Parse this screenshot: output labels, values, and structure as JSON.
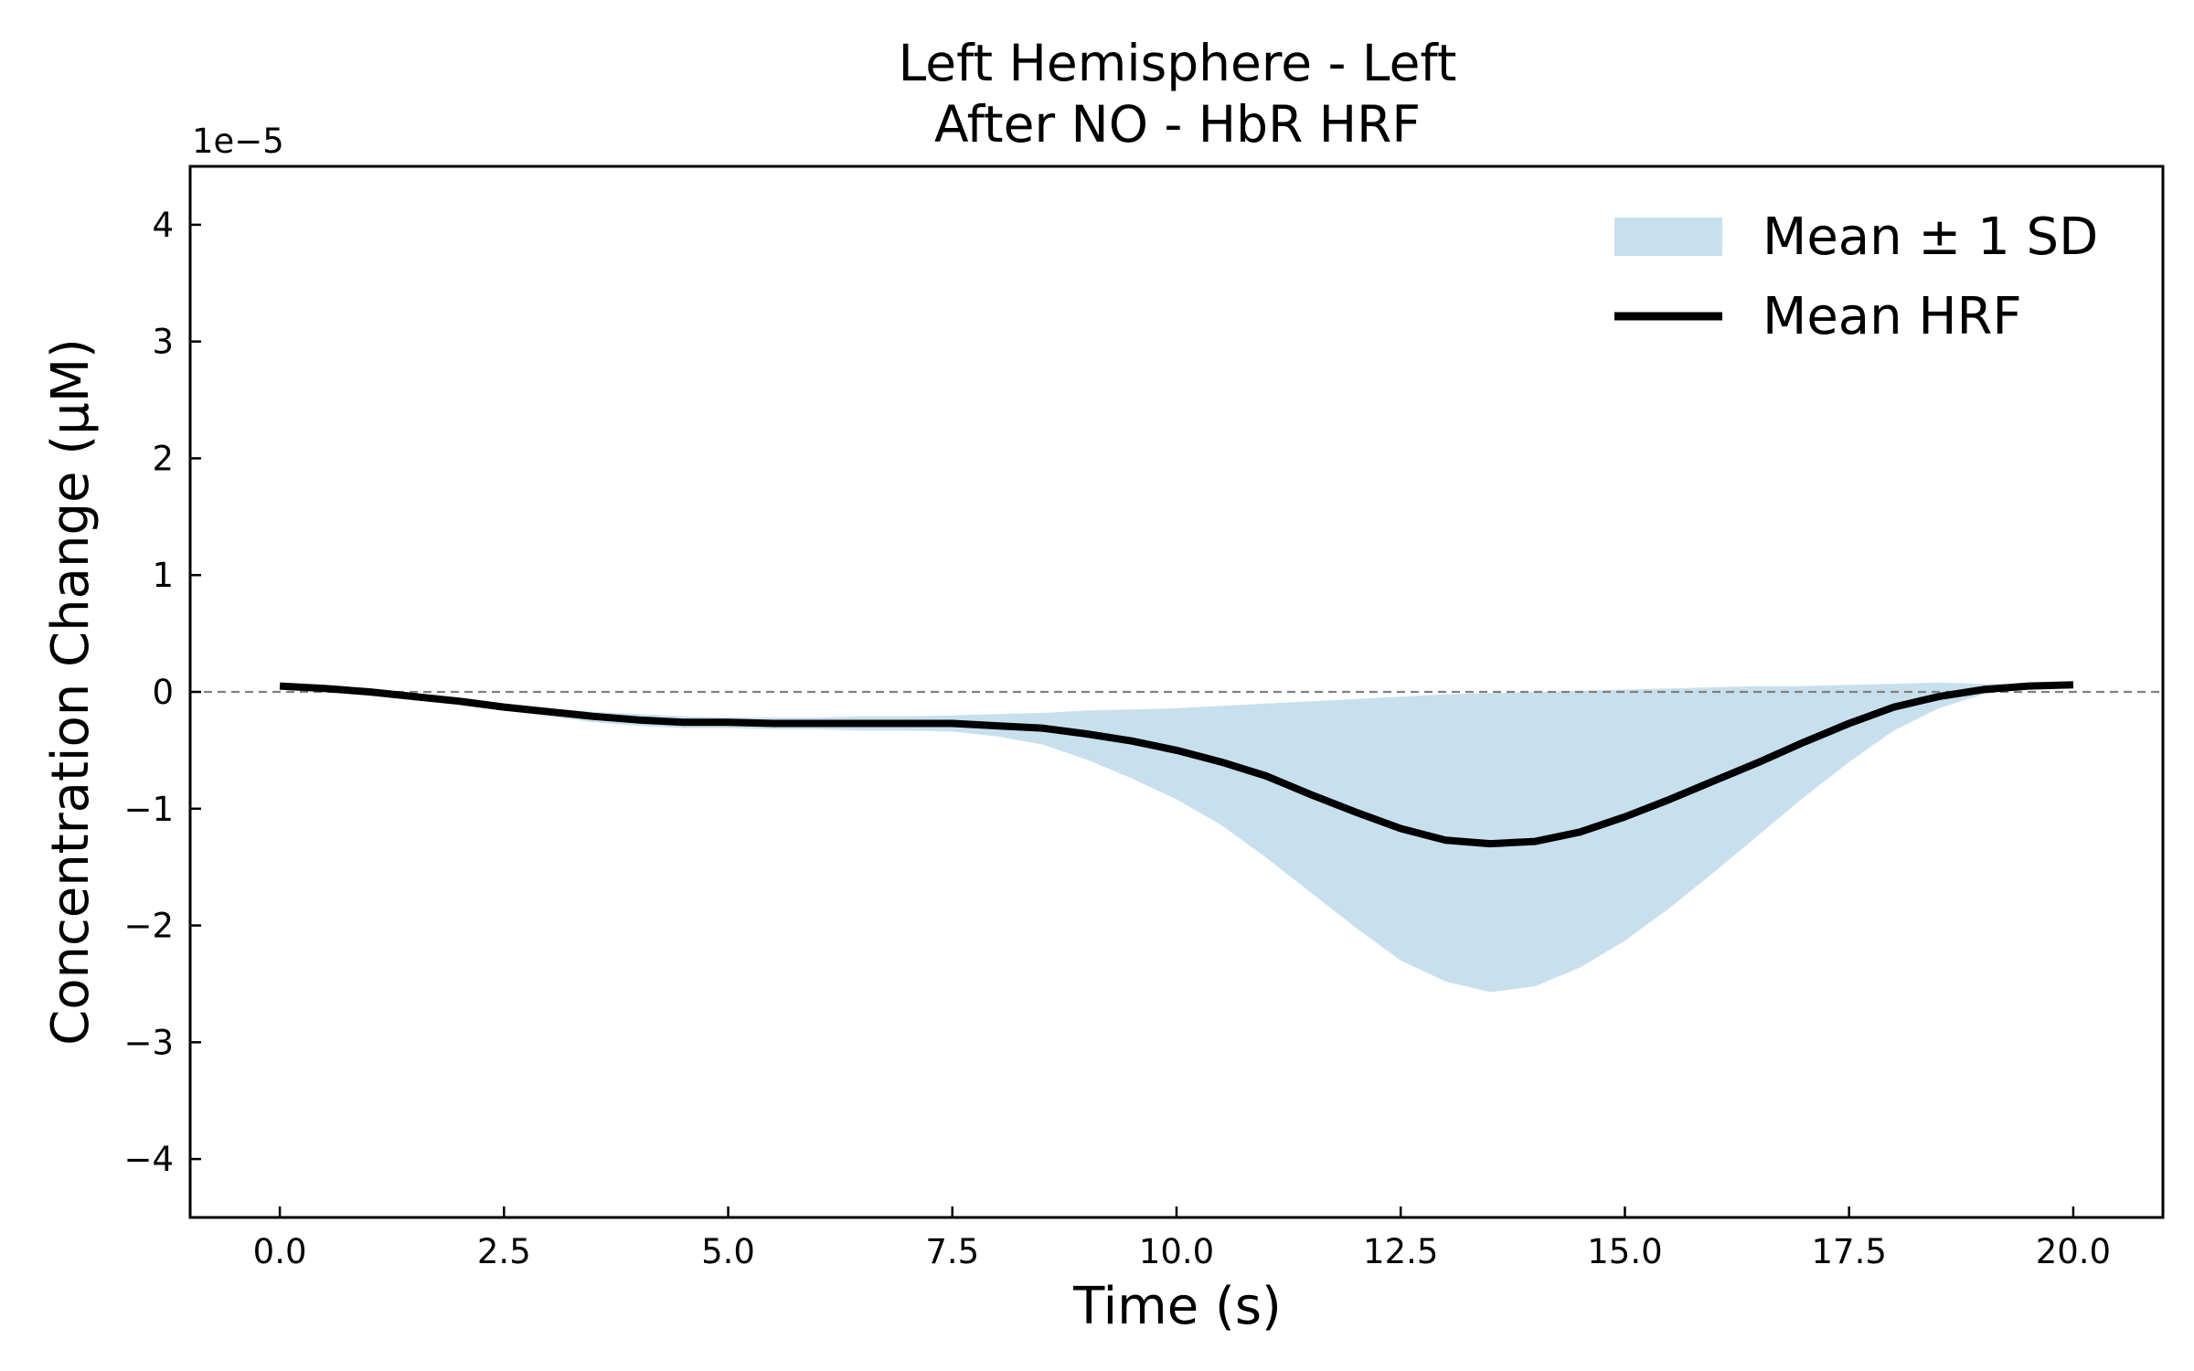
{
  "chart_data": {
    "type": "line",
    "title_line1": "Left Hemisphere - Left",
    "title_line2": "After NO - HbR HRF",
    "xlabel": "Time (s)",
    "ylabel": "Concentration Change (μM)",
    "y_offset_label": "1e−5",
    "xlim": [
      -1.0,
      21.0
    ],
    "ylim": [
      -4.5,
      4.5
    ],
    "x_ticks": [
      0.0,
      2.5,
      5.0,
      7.5,
      10.0,
      12.5,
      15.0,
      17.5,
      20.0
    ],
    "x_tick_labels": [
      "0.0",
      "2.5",
      "5.0",
      "7.5",
      "10.0",
      "12.5",
      "15.0",
      "17.5",
      "20.0"
    ],
    "y_ticks": [
      -4,
      -3,
      -2,
      -1,
      0,
      1,
      2,
      3,
      4
    ],
    "y_tick_labels": [
      "−4",
      "−3",
      "−2",
      "−1",
      "0",
      "1",
      "2",
      "3",
      "4"
    ],
    "grid": false,
    "zero_line": true,
    "legend_position": "top-right",
    "colors": {
      "band": "#c8e0ee",
      "line": "#000000",
      "zero_line": "#808080"
    },
    "series": [
      {
        "name": "Mean HRF",
        "x": [
          0,
          0.5,
          1,
          1.5,
          2,
          2.5,
          3,
          3.5,
          4,
          4.5,
          5,
          5.5,
          6,
          6.5,
          7,
          7.5,
          8,
          8.5,
          9,
          9.5,
          10,
          10.5,
          11,
          11.5,
          12,
          12.5,
          13,
          13.5,
          14,
          14.5,
          15,
          15.5,
          16,
          16.5,
          17,
          17.5,
          18,
          18.5,
          19,
          19.5,
          20
        ],
        "y": [
          0.05,
          0.03,
          0.0,
          -0.04,
          -0.08,
          -0.13,
          -0.17,
          -0.21,
          -0.24,
          -0.26,
          -0.26,
          -0.27,
          -0.27,
          -0.27,
          -0.27,
          -0.27,
          -0.29,
          -0.31,
          -0.36,
          -0.42,
          -0.5,
          -0.6,
          -0.72,
          -0.88,
          -1.03,
          -1.17,
          -1.27,
          -1.3,
          -1.28,
          -1.2,
          -1.07,
          -0.92,
          -0.76,
          -0.6,
          -0.43,
          -0.27,
          -0.13,
          -0.04,
          0.02,
          0.05,
          0.06
        ]
      },
      {
        "name": "Mean ± 1 SD",
        "x": [
          0,
          0.5,
          1,
          1.5,
          2,
          2.5,
          3,
          3.5,
          4,
          4.5,
          5,
          5.5,
          6,
          6.5,
          7,
          7.5,
          8,
          8.5,
          9,
          9.5,
          10,
          10.5,
          11,
          11.5,
          12,
          12.5,
          13,
          13.5,
          14,
          14.5,
          15,
          15.5,
          16,
          16.5,
          17,
          17.5,
          18,
          18.5,
          19,
          19.5,
          20
        ],
        "upper": [
          0.06,
          0.04,
          0.01,
          -0.03,
          -0.07,
          -0.11,
          -0.14,
          -0.17,
          -0.19,
          -0.21,
          -0.22,
          -0.22,
          -0.22,
          -0.21,
          -0.21,
          -0.2,
          -0.19,
          -0.18,
          -0.16,
          -0.15,
          -0.14,
          -0.12,
          -0.1,
          -0.08,
          -0.06,
          -0.04,
          -0.02,
          -0.01,
          0.0,
          0.01,
          0.02,
          0.03,
          0.04,
          0.05,
          0.05,
          0.06,
          0.07,
          0.08,
          0.07,
          0.06,
          0.06
        ],
        "lower": [
          0.04,
          0.02,
          -0.01,
          -0.05,
          -0.1,
          -0.16,
          -0.21,
          -0.26,
          -0.29,
          -0.31,
          -0.31,
          -0.32,
          -0.32,
          -0.33,
          -0.33,
          -0.34,
          -0.38,
          -0.45,
          -0.58,
          -0.74,
          -0.92,
          -1.14,
          -1.42,
          -1.72,
          -2.02,
          -2.3,
          -2.48,
          -2.57,
          -2.52,
          -2.36,
          -2.13,
          -1.85,
          -1.54,
          -1.22,
          -0.9,
          -0.6,
          -0.33,
          -0.14,
          -0.02,
          0.04,
          0.06
        ]
      }
    ]
  }
}
